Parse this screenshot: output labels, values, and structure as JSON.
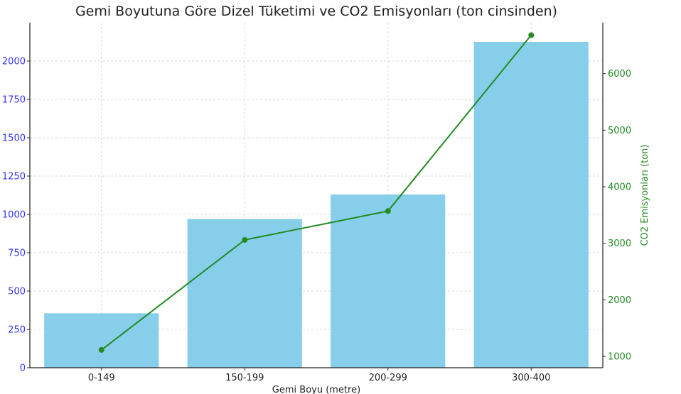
{
  "chart_data": {
    "type": "bar",
    "title": "Gemi Boyutuna Göre Dizel Tüketimi ve CO2 Emisyonları (ton cinsinden)",
    "xlabel": "Gemi Boyu (metre)",
    "ylabel": "",
    "y2label": "CO2 Emisyonları (ton)",
    "categories": [
      "0-149",
      "150-199",
      "200-299",
      "300-400"
    ],
    "series": [
      {
        "type": "bar",
        "axis": "left",
        "values": [
          355,
          970,
          1130,
          2125
        ],
        "color": "#87ceeb"
      },
      {
        "type": "line",
        "axis": "right",
        "values": [
          1115,
          3060,
          3570,
          6680
        ],
        "color": "#228b22"
      }
    ],
    "ylim": [
      0,
      2250
    ],
    "y2lim": [
      800,
      6900
    ],
    "yticks": [
      0,
      250,
      500,
      750,
      1000,
      1250,
      1500,
      1750,
      2000
    ],
    "y2ticks": [
      1000,
      2000,
      3000,
      4000,
      5000,
      6000
    ],
    "left_tick_color": "#3333ff",
    "right_tick_color": "#228b22",
    "grid": true,
    "legend": "none"
  }
}
